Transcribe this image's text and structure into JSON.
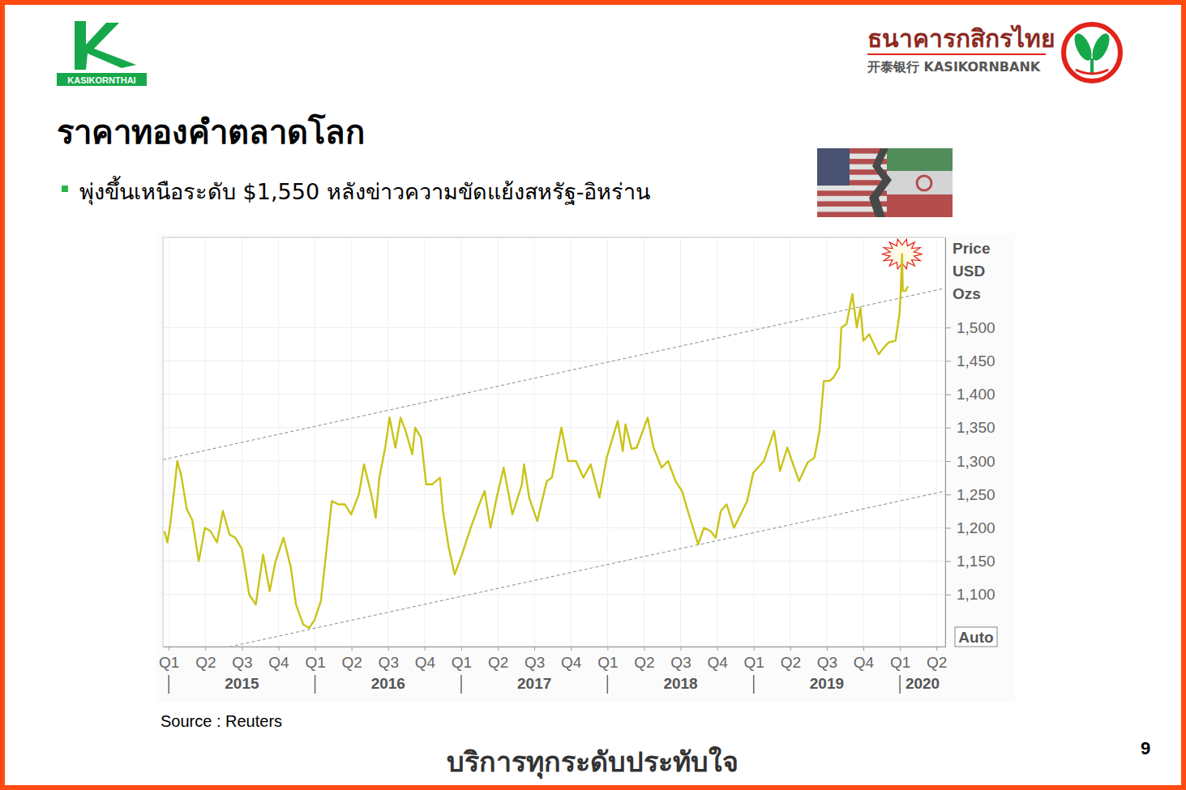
{
  "header": {
    "logo_text": "KASIKORNTHAI",
    "bank_name": "ธนาคารกสิกรไทย",
    "bank_name_en": "开泰银行 KASIKORNBANK"
  },
  "title": "ราคาทองคำตลาดโลก",
  "bullet": "พุ่งขึ้นเหนือระดับ $1,550 หลังข่าวความขัดแย้งสหรัฐ-อิหร่าน",
  "chart_data": {
    "type": "line",
    "y_label": [
      "Price",
      "USD",
      "Ozs"
    ],
    "color": "#c9c417",
    "grid": true,
    "x": [
      2014.97,
      2014.99,
      2015.01,
      2015.04,
      2015.058,
      2015.085,
      2015.123,
      2015.16,
      2015.205,
      2015.247,
      2015.285,
      2015.33,
      2015.37,
      2015.415,
      2015.455,
      2015.5,
      2015.55,
      2015.595,
      2015.645,
      2015.69,
      2015.73,
      2015.785,
      2015.835,
      2015.87,
      2015.92,
      2015.96,
      2015.997,
      2016.04,
      2016.115,
      2016.16,
      2016.205,
      2016.247,
      2016.3,
      2016.335,
      2016.385,
      2016.415,
      2016.44,
      2016.48,
      2016.51,
      2016.55,
      2016.585,
      2016.62,
      2016.665,
      2016.685,
      2016.725,
      2016.76,
      2016.8,
      2016.855,
      2016.875,
      2016.915,
      2016.955,
      2017.005,
      2017.065,
      2017.123,
      2017.16,
      2017.2,
      2017.247,
      2017.29,
      2017.35,
      2017.415,
      2017.43,
      2017.465,
      2017.52,
      2017.585,
      2017.62,
      2017.685,
      2017.73,
      2017.785,
      2017.835,
      2017.885,
      2017.945,
      2017.995,
      2018.07,
      2018.105,
      2018.123,
      2018.165,
      2018.2,
      2018.275,
      2018.315,
      2018.37,
      2018.415,
      2018.465,
      2018.51,
      2018.55,
      2018.62,
      2018.66,
      2018.705,
      2018.74,
      2018.775,
      2018.815,
      2018.865,
      2018.915,
      2018.955,
      2018.997,
      2019.07,
      2019.14,
      2019.18,
      2019.23,
      2019.31,
      2019.37,
      2019.415,
      2019.45,
      2019.48,
      2019.52,
      2019.545,
      2019.585,
      2019.6,
      2019.635,
      2019.675,
      2019.705,
      2019.73,
      2019.75,
      2019.79,
      2019.855,
      2019.89,
      2019.925,
      2019.97,
      2019.997,
      2020.005,
      2020.015,
      2020.02,
      2020.04,
      2020.055
    ],
    "values": [
      1195,
      1178,
      1205,
      1262,
      1300,
      1278,
      1228,
      1212,
      1150,
      1200,
      1195,
      1178,
      1225,
      1190,
      1185,
      1168,
      1100,
      1085,
      1160,
      1105,
      1150,
      1185,
      1140,
      1085,
      1055,
      1050,
      1062,
      1090,
      1240,
      1235,
      1235,
      1220,
      1250,
      1295,
      1250,
      1215,
      1275,
      1320,
      1365,
      1320,
      1365,
      1345,
      1310,
      1350,
      1335,
      1265,
      1265,
      1275,
      1225,
      1170,
      1130,
      1160,
      1200,
      1235,
      1255,
      1200,
      1250,
      1290,
      1220,
      1265,
      1295,
      1245,
      1210,
      1270,
      1275,
      1350,
      1300,
      1300,
      1275,
      1295,
      1245,
      1305,
      1360,
      1315,
      1355,
      1318,
      1320,
      1365,
      1320,
      1290,
      1300,
      1270,
      1255,
      1225,
      1175,
      1200,
      1195,
      1185,
      1225,
      1235,
      1200,
      1222,
      1240,
      1282,
      1300,
      1345,
      1285,
      1320,
      1270,
      1298,
      1305,
      1345,
      1420,
      1420,
      1425,
      1440,
      1500,
      1505,
      1550,
      1500,
      1530,
      1480,
      1490,
      1460,
      1470,
      1478,
      1480,
      1520,
      1550,
      1610,
      1555,
      1555,
      1562
    ],
    "xlim": [
      2014.96,
      2020.31
    ],
    "ylim": [
      1022,
      1635
    ],
    "xticks": [
      {
        "value": 2015,
        "label": "Q1"
      },
      {
        "value": 2015.25,
        "label": "Q2"
      },
      {
        "value": 2015.5,
        "label": "Q3"
      },
      {
        "value": 2015.75,
        "label": "Q4"
      },
      {
        "value": 2016,
        "label": "Q1"
      },
      {
        "value": 2016.25,
        "label": "Q2"
      },
      {
        "value": 2016.5,
        "label": "Q3"
      },
      {
        "value": 2016.75,
        "label": "Q4"
      },
      {
        "value": 2017,
        "label": "Q1"
      },
      {
        "value": 2017.25,
        "label": "Q2"
      },
      {
        "value": 2017.5,
        "label": "Q3"
      },
      {
        "value": 2017.75,
        "label": "Q4"
      },
      {
        "value": 2018,
        "label": "Q1"
      },
      {
        "value": 2018.25,
        "label": "Q2"
      },
      {
        "value": 2018.5,
        "label": "Q3"
      },
      {
        "value": 2018.75,
        "label": "Q4"
      },
      {
        "value": 2019,
        "label": "Q1"
      },
      {
        "value": 2019.25,
        "label": "Q2"
      },
      {
        "value": 2019.5,
        "label": "Q3"
      },
      {
        "value": 2019.75,
        "label": "Q4"
      },
      {
        "value": 2020,
        "label": "Q1"
      },
      {
        "value": 2020.25,
        "label": "Q2"
      }
    ],
    "yticks": [
      {
        "value": 1100,
        "label": "1,100"
      },
      {
        "value": 1150,
        "label": "1,150"
      },
      {
        "value": 1200,
        "label": "1,200"
      },
      {
        "value": 1250,
        "label": "1,250"
      },
      {
        "value": 1300,
        "label": "1,300"
      },
      {
        "value": 1350,
        "label": "1,350"
      },
      {
        "value": 1400,
        "label": "1,400"
      },
      {
        "value": 1450,
        "label": "1,450"
      },
      {
        "value": 1500,
        "label": "1,500"
      }
    ],
    "x_groups": [
      {
        "label": "2015",
        "start": 2015,
        "end": 2016
      },
      {
        "label": "2016",
        "start": 2016,
        "end": 2017
      },
      {
        "label": "2017",
        "start": 2017,
        "end": 2018
      },
      {
        "label": "2018",
        "start": 2018,
        "end": 2019
      },
      {
        "label": "2019",
        "start": 2019,
        "end": 2020
      },
      {
        "label": "2020",
        "start": 2020,
        "end": 2020.31
      }
    ],
    "trend_lines": [
      {
        "x": [
          2014.96,
          2020.31
        ],
        "values": [
          1302,
          1559
        ],
        "line_style": "dashed"
      },
      {
        "x": [
          2014.96,
          2020.31
        ],
        "values": [
          1000,
          1255
        ],
        "line_style": "dashed"
      }
    ]
  },
  "chart_button": "Auto",
  "source": "Source : Reuters",
  "footer": "บริการทุกระดับประทับใจ",
  "page_number": 9
}
